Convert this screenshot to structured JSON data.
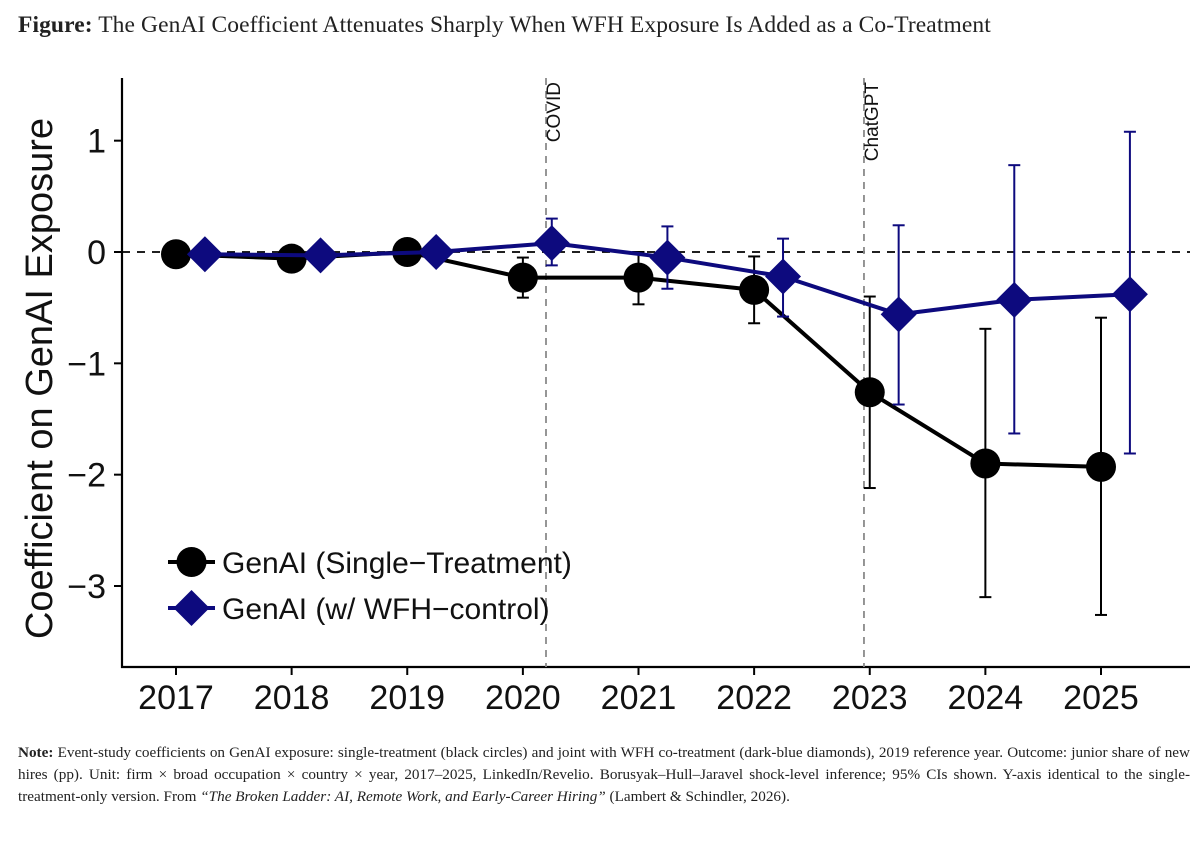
{
  "figure": {
    "title_lead": "Figure:",
    "title_text": " The GenAI Coefficient Attenuates Sharply When WFH Exposure Is Added as a Co-Treatment",
    "note_lead": "Note:",
    "note_text": " Event-study coefficients on GenAI exposure: single-treatment (black circles) and joint with WFH co-treatment (dark-blue diamonds), 2019 reference year. Outcome: junior share of new hires (pp). Unit: firm × broad occupation × country × year, 2017–2025, LinkedIn/Revelio. Borusyak–Hull–Jaravel shock-level inference; 95% CIs shown. Y-axis identical to the single-treatment-only version. From ",
    "note_source": "“The Broken Ladder: AI, Remote Work, and Early-Career Hiring”",
    "note_tail": " (Lambert & Schindler, 2026)."
  },
  "chart_data": {
    "type": "line",
    "title": "",
    "xlabel": "",
    "ylabel": "Coefficient on GenAI Exposure",
    "categories": [
      "2017",
      "2018",
      "2019",
      "2020",
      "2021",
      "2022",
      "2023",
      "2024",
      "2025"
    ],
    "x_ticks": [
      2017,
      2018,
      2019,
      2020,
      2021,
      2022,
      2023,
      2024,
      2025
    ],
    "y_ticks": [
      -3,
      -2,
      -1,
      0,
      1
    ],
    "y_tick_labels": [
      "−3",
      "−2",
      "−1",
      "0",
      "1"
    ],
    "xlim": [
      2016.55,
      2025.6
    ],
    "ylim": [
      -3.75,
      1.55
    ],
    "grid": false,
    "reference_line_y": 0,
    "event_lines": [
      {
        "x": 2020.2,
        "label": "COVID"
      },
      {
        "x": 2022.95,
        "label": "ChatGPT"
      }
    ],
    "legend_position": "bottom-left",
    "series": [
      {
        "name": "GenAI (Single−Treatment)",
        "marker": "circle",
        "color": "#000000",
        "x": [
          2017,
          2018,
          2019,
          2020,
          2021,
          2022,
          2023,
          2024,
          2025
        ],
        "values": [
          -0.02,
          -0.06,
          0.0,
          -0.23,
          -0.23,
          -0.34,
          -1.26,
          -1.9,
          -1.93
        ],
        "ci_low": [
          null,
          null,
          null,
          -0.41,
          -0.47,
          -0.64,
          -2.12,
          -3.1,
          -3.26
        ],
        "ci_high": [
          null,
          null,
          null,
          -0.05,
          0.0,
          -0.04,
          -0.4,
          -0.69,
          -0.59
        ]
      },
      {
        "name": "GenAI (w/ WFH−control)",
        "marker": "diamond",
        "color": "#0d0a7e",
        "x": [
          2017.25,
          2018.25,
          2019.25,
          2020.25,
          2021.25,
          2022.25,
          2023.25,
          2024.25,
          2025.25
        ],
        "values": [
          -0.02,
          -0.03,
          0.0,
          0.08,
          -0.05,
          -0.22,
          -0.56,
          -0.43,
          -0.38
        ],
        "ci_low": [
          null,
          null,
          null,
          -0.12,
          -0.33,
          -0.58,
          -1.37,
          -1.63,
          -1.81
        ],
        "ci_high": [
          null,
          null,
          null,
          0.3,
          0.23,
          0.12,
          0.24,
          0.78,
          1.08
        ]
      }
    ]
  }
}
